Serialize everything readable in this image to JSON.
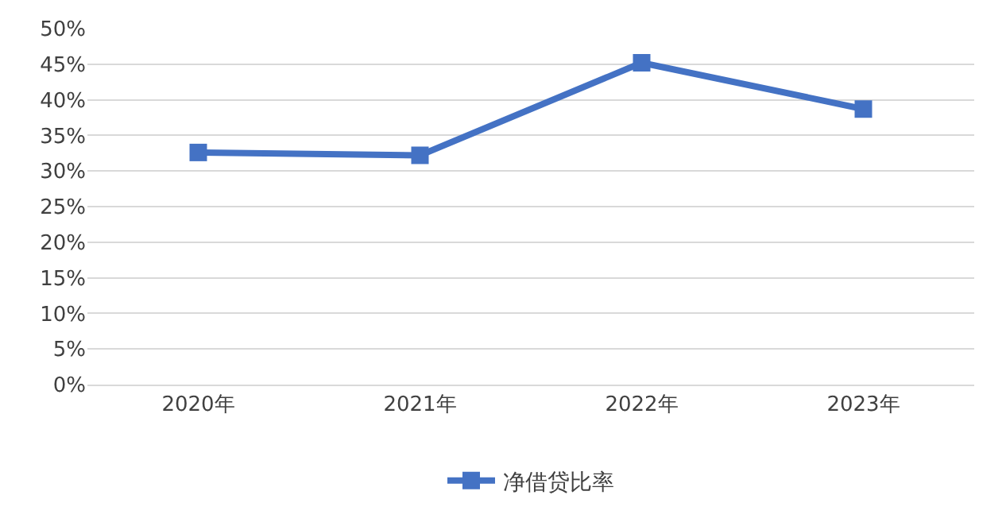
{
  "chart_data": {
    "type": "line",
    "categories": [
      "2020年",
      "2021年",
      "2022年",
      "2023年"
    ],
    "series": [
      {
        "name": "净借贷比率",
        "color": "#4472c4",
        "values": [
          32.6,
          32.2,
          45.2,
          38.7
        ]
      }
    ],
    "ylim": [
      0,
      50
    ],
    "yticks": [
      {
        "value": 0,
        "label": "0%"
      },
      {
        "value": 5,
        "label": "5%"
      },
      {
        "value": 10,
        "label": "10%"
      },
      {
        "value": 15,
        "label": "15%"
      },
      {
        "value": 20,
        "label": "20%"
      },
      {
        "value": 25,
        "label": "25%"
      },
      {
        "value": 30,
        "label": "30%"
      },
      {
        "value": 35,
        "label": "35%"
      },
      {
        "value": 40,
        "label": "40%"
      },
      {
        "value": 45,
        "label": "45%"
      },
      {
        "value": 50,
        "label": "50%"
      }
    ],
    "grid": "y",
    "legend": "bottom",
    "marker": "square",
    "line_style": "solid"
  }
}
